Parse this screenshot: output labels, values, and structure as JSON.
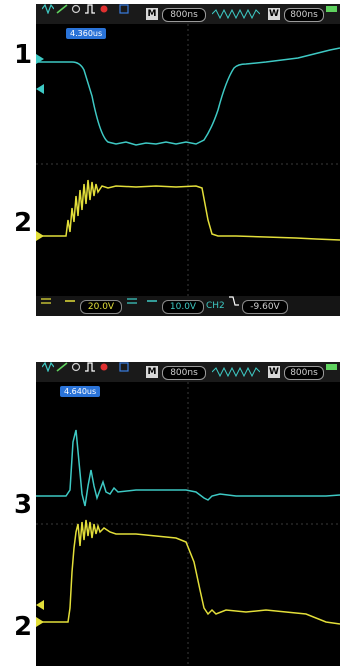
{
  "labels": {
    "top_ch1": "1",
    "top_ch2": "2",
    "bottom_ch1": "3",
    "bottom_ch2": "2"
  },
  "scope_top": {
    "m_letter": "M",
    "time_div": "800ns",
    "w_letter": "W",
    "window_div": "800ns",
    "trigger_time": "4.360us",
    "ch1_scale": "20.0V",
    "ch2_scale": "10.0V",
    "trigger_channel": "CH2",
    "trigger_level": "-9.60V"
  },
  "scope_bottom": {
    "m_letter": "M",
    "time_div": "800ns",
    "w_letter": "W",
    "window_div": "800ns",
    "trigger_time": "4.640us"
  },
  "colors": {
    "ch1": "#3ec9c4",
    "ch2": "#e3df3a",
    "grid": "#3a3a3a",
    "trigger_badge": "#2a73d8"
  }
}
